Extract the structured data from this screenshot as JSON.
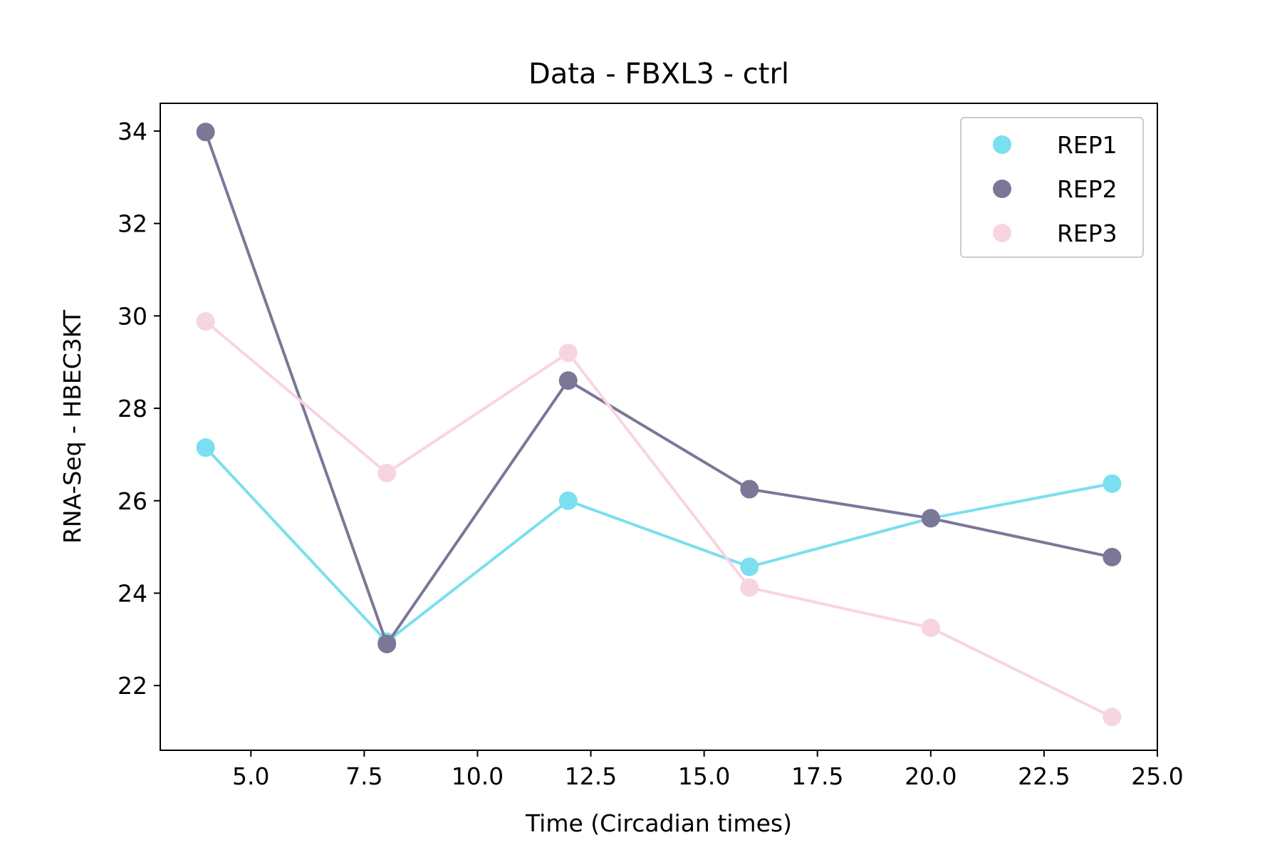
{
  "chart_data": {
    "type": "line",
    "title": "Data - FBXL3 - ctrl",
    "xlabel": "Time (Circadian times)",
    "ylabel": "RNA-Seq - HBEC3KT",
    "xlim": [
      3.0,
      25.0
    ],
    "ylim": [
      20.6,
      34.6
    ],
    "xticks": [
      5.0,
      7.5,
      10.0,
      12.5,
      15.0,
      17.5,
      20.0,
      22.5,
      25.0
    ],
    "xtick_labels": [
      "5.0",
      "7.5",
      "10.0",
      "12.5",
      "15.0",
      "17.5",
      "20.0",
      "22.5",
      "25.0"
    ],
    "yticks": [
      22,
      24,
      26,
      28,
      30,
      32,
      34
    ],
    "ytick_labels": [
      "22",
      "24",
      "26",
      "28",
      "30",
      "32",
      "34"
    ],
    "grid": false,
    "legend_position": "top-right",
    "x": [
      4,
      8,
      12,
      16,
      20,
      24
    ],
    "series": [
      {
        "name": "REP1",
        "color": "#7adfee",
        "values": [
          27.15,
          22.95,
          26.0,
          24.57,
          25.62,
          26.37
        ]
      },
      {
        "name": "REP2",
        "color": "#7b7797",
        "values": [
          33.98,
          22.9,
          28.6,
          26.25,
          25.62,
          24.78
        ]
      },
      {
        "name": "REP3",
        "color": "#f7d5e0",
        "values": [
          29.88,
          26.6,
          29.2,
          24.12,
          23.25,
          21.32
        ]
      }
    ]
  }
}
